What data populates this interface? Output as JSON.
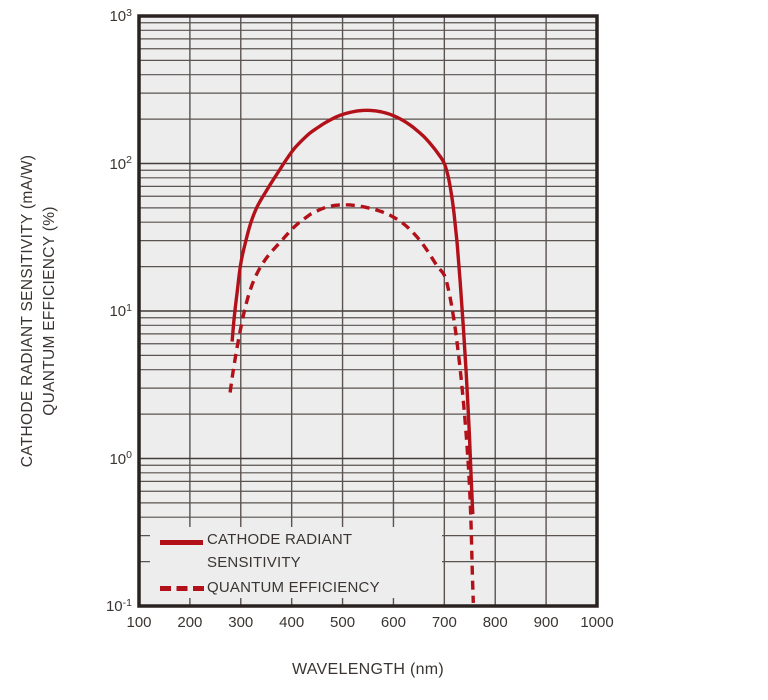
{
  "colors": {
    "curve_red": "#b3111a",
    "plot_bg": "#ededed",
    "grid_minor": "#5a5350",
    "grid_major": "#433d3a",
    "border": "#2a2220",
    "text": "#3a3532"
  },
  "y_axis": {
    "title_line1": "CATHODE RADIANT SENSITIVITY (mA/W)",
    "title_line2": "QUANTUM EFFICIENCY (%)",
    "tick_base": "10",
    "tick_exponents": [
      "3",
      "2",
      "1",
      "0",
      "-1"
    ]
  },
  "x_axis": {
    "title": "WAVELENGTH (nm)",
    "ticks": [
      "100",
      "200",
      "300",
      "400",
      "500",
      "600",
      "700",
      "800",
      "900",
      "1000"
    ]
  },
  "legend": {
    "items": [
      {
        "style": "solid",
        "label_line1": "CATHODE RADIANT",
        "label_line2": "SENSITIVITY"
      },
      {
        "style": "dashed",
        "label_line1": "QUANTUM EFFICIENCY",
        "label_line2": ""
      }
    ]
  },
  "chart_data": {
    "type": "line",
    "title": "",
    "xlabel": "WAVELENGTH (nm)",
    "ylabel": "CATHODE RADIANT SENSITIVITY (mA/W) / QUANTUM EFFICIENCY (%)",
    "x_scale": "linear",
    "y_scale": "log",
    "xlim": [
      100,
      1000
    ],
    "ylim": [
      0.1,
      1000
    ],
    "x_gridline_step": 100,
    "grid": true,
    "legend_position": "inside-bottom-left",
    "series": [
      {
        "name": "CATHODE RADIANT SENSITIVITY",
        "unit": "mA/W",
        "line": "solid",
        "color": "#b3111a",
        "points": [
          [
            283,
            6.2
          ],
          [
            287,
            9
          ],
          [
            293,
            13.5
          ],
          [
            300,
            21
          ],
          [
            310,
            30
          ],
          [
            320,
            40
          ],
          [
            330,
            49
          ],
          [
            340,
            57
          ],
          [
            350,
            65
          ],
          [
            360,
            74
          ],
          [
            375,
            89
          ],
          [
            390,
            107
          ],
          [
            405,
            126
          ],
          [
            420,
            143
          ],
          [
            435,
            160
          ],
          [
            450,
            174
          ],
          [
            465,
            188
          ],
          [
            480,
            201
          ],
          [
            495,
            212
          ],
          [
            510,
            220
          ],
          [
            525,
            226
          ],
          [
            540,
            229
          ],
          [
            555,
            229
          ],
          [
            570,
            226
          ],
          [
            585,
            220
          ],
          [
            600,
            211
          ],
          [
            615,
            199
          ],
          [
            630,
            185
          ],
          [
            645,
            169
          ],
          [
            660,
            152
          ],
          [
            675,
            133
          ],
          [
            690,
            114
          ],
          [
            700,
            100
          ],
          [
            707,
            83
          ],
          [
            713,
            65
          ],
          [
            719,
            46
          ],
          [
            725,
            29
          ],
          [
            731,
            16
          ],
          [
            737,
            8
          ],
          [
            743,
            3.8
          ],
          [
            749,
            1.5
          ],
          [
            753,
            0.7
          ],
          [
            756,
            0.42
          ]
        ]
      },
      {
        "name": "QUANTUM EFFICIENCY",
        "unit": "%",
        "line": "dashed",
        "color": "#b3111a",
        "points": [
          [
            279,
            2.8
          ],
          [
            284,
            3.7
          ],
          [
            290,
            5.0
          ],
          [
            297,
            6.8
          ],
          [
            305,
            9.3
          ],
          [
            313,
            12
          ],
          [
            322,
            15
          ],
          [
            332,
            18
          ],
          [
            343,
            21
          ],
          [
            355,
            24
          ],
          [
            368,
            27
          ],
          [
            382,
            30.5
          ],
          [
            396,
            34.5
          ],
          [
            410,
            38.5
          ],
          [
            424,
            42
          ],
          [
            438,
            45.5
          ],
          [
            452,
            48
          ],
          [
            466,
            50.3
          ],
          [
            480,
            51.7
          ],
          [
            494,
            52.4
          ],
          [
            508,
            52.5
          ],
          [
            522,
            52.1
          ],
          [
            536,
            51.3
          ],
          [
            550,
            50.1
          ],
          [
            565,
            48.6
          ],
          [
            580,
            46.7
          ],
          [
            595,
            44.3
          ],
          [
            610,
            41.3
          ],
          [
            625,
            37.7
          ],
          [
            640,
            33.6
          ],
          [
            655,
            29.2
          ],
          [
            670,
            24.6
          ],
          [
            685,
            20.4
          ],
          [
            700,
            17.5
          ],
          [
            707,
            14.5
          ],
          [
            714,
            11
          ],
          [
            721,
            7.8
          ],
          [
            728,
            5
          ],
          [
            735,
            3
          ],
          [
            742,
            1.6
          ],
          [
            748,
            0.8
          ],
          [
            752,
            0.4
          ],
          [
            755,
            0.17
          ],
          [
            757,
            0.105
          ]
        ]
      }
    ]
  }
}
